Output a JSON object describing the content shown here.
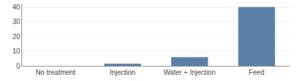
{
  "chart_data": {
    "type": "bar",
    "categories": [
      "No treatment",
      "Injection",
      "Water + Injection",
      "Feed"
    ],
    "values": [
      0,
      1.5,
      6,
      40
    ],
    "color": "#5b7fa6",
    "ylim": [
      0,
      42
    ],
    "yticks": [
      0,
      10,
      20,
      30,
      40
    ],
    "grid": true
  }
}
